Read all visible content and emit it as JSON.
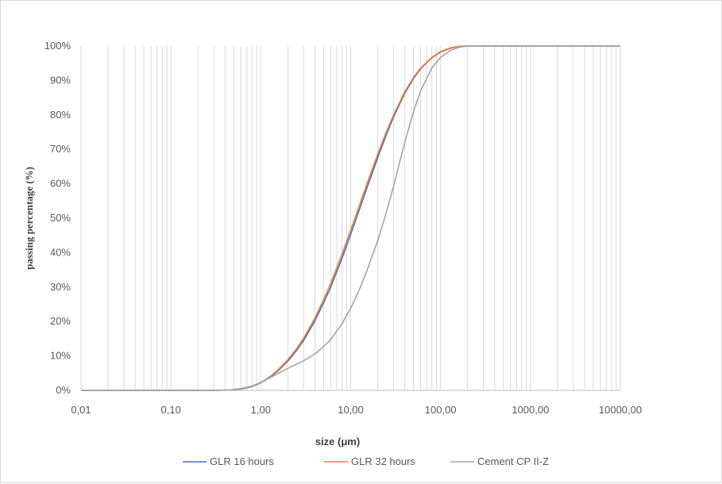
{
  "chart_data": {
    "type": "line",
    "title": "",
    "xlabel": "size (μm)",
    "ylabel": "passing percentage (%)",
    "x_scale": "log",
    "xlim": [
      0.01,
      10000
    ],
    "ylim": [
      0,
      100
    ],
    "x_ticks": [
      {
        "value": 0.01,
        "label": "0,01"
      },
      {
        "value": 0.1,
        "label": "0,10"
      },
      {
        "value": 1,
        "label": "1,00"
      },
      {
        "value": 10,
        "label": "10,00"
      },
      {
        "value": 100,
        "label": "100,00"
      },
      {
        "value": 1000,
        "label": "1000,00"
      },
      {
        "value": 10000,
        "label": "10000,00"
      }
    ],
    "y_ticks": [
      {
        "value": 0,
        "label": "0%"
      },
      {
        "value": 10,
        "label": "10%"
      },
      {
        "value": 20,
        "label": "20%"
      },
      {
        "value": 30,
        "label": "30%"
      },
      {
        "value": 40,
        "label": "40%"
      },
      {
        "value": 50,
        "label": "50%"
      },
      {
        "value": 60,
        "label": "60%"
      },
      {
        "value": 70,
        "label": "70%"
      },
      {
        "value": 80,
        "label": "80%"
      },
      {
        "value": 90,
        "label": "90%"
      },
      {
        "value": 100,
        "label": "100%"
      }
    ],
    "grid": {
      "vertical_minor": true,
      "horizontal": false
    },
    "legend_position": "bottom",
    "series": [
      {
        "name": "GLR 16 hours",
        "color": "#4472c4",
        "points": [
          [
            0.01,
            0
          ],
          [
            0.3,
            0
          ],
          [
            0.45,
            0.1
          ],
          [
            0.6,
            0.4
          ],
          [
            0.8,
            1.1
          ],
          [
            1.0,
            2.2
          ],
          [
            1.3,
            4.0
          ],
          [
            1.6,
            6.0
          ],
          [
            2.0,
            8.5
          ],
          [
            2.5,
            11.6
          ],
          [
            3.0,
            14.5
          ],
          [
            4.0,
            20.2
          ],
          [
            5.0,
            25.4
          ],
          [
            6.0,
            30.0
          ],
          [
            8.0,
            38.3
          ],
          [
            10.0,
            45.3
          ],
          [
            12.5,
            52.5
          ],
          [
            15.0,
            58.4
          ],
          [
            20.0,
            67.6
          ],
          [
            25.0,
            74.3
          ],
          [
            30.0,
            79.4
          ],
          [
            40.0,
            86.3
          ],
          [
            50.0,
            90.6
          ],
          [
            60.0,
            93.4
          ],
          [
            80.0,
            96.6
          ],
          [
            100.0,
            98.3
          ],
          [
            130.0,
            99.4
          ],
          [
            160.0,
            99.9
          ],
          [
            200.0,
            100
          ],
          [
            10000,
            100
          ]
        ]
      },
      {
        "name": "GLR 32 hours",
        "color": "#ed7d31",
        "points": [
          [
            0.01,
            0
          ],
          [
            0.3,
            0
          ],
          [
            0.45,
            0.1
          ],
          [
            0.6,
            0.5
          ],
          [
            0.8,
            1.2
          ],
          [
            1.0,
            2.3
          ],
          [
            1.3,
            4.2
          ],
          [
            1.6,
            6.3
          ],
          [
            2.0,
            8.9
          ],
          [
            2.5,
            12.1
          ],
          [
            3.0,
            15.1
          ],
          [
            4.0,
            21.0
          ],
          [
            5.0,
            26.4
          ],
          [
            6.0,
            31.1
          ],
          [
            8.0,
            39.5
          ],
          [
            10.0,
            46.5
          ],
          [
            12.5,
            53.7
          ],
          [
            15.0,
            59.6
          ],
          [
            20.0,
            68.6
          ],
          [
            25.0,
            75.1
          ],
          [
            30.0,
            80.0
          ],
          [
            40.0,
            86.7
          ],
          [
            50.0,
            90.9
          ],
          [
            60.0,
            93.6
          ],
          [
            80.0,
            96.7
          ],
          [
            100.0,
            98.4
          ],
          [
            130.0,
            99.5
          ],
          [
            160.0,
            99.9
          ],
          [
            200.0,
            100
          ],
          [
            10000,
            100
          ]
        ]
      },
      {
        "name": "Cement CP II-Z",
        "color": "#a5a5a5",
        "points": [
          [
            0.01,
            0
          ],
          [
            0.3,
            0
          ],
          [
            0.45,
            0.1
          ],
          [
            0.6,
            0.5
          ],
          [
            0.8,
            1.3
          ],
          [
            1.0,
            2.3
          ],
          [
            1.3,
            3.8
          ],
          [
            1.6,
            5.1
          ],
          [
            2.0,
            6.4
          ],
          [
            2.5,
            7.6
          ],
          [
            3.0,
            8.6
          ],
          [
            4.0,
            10.6
          ],
          [
            5.0,
            12.7
          ],
          [
            6.0,
            14.8
          ],
          [
            8.0,
            19.3
          ],
          [
            10.0,
            23.8
          ],
          [
            12.5,
            29.3
          ],
          [
            15.0,
            34.4
          ],
          [
            20.0,
            43.5
          ],
          [
            25.0,
            51.8
          ],
          [
            30.0,
            59.3
          ],
          [
            40.0,
            72.0
          ],
          [
            50.0,
            81.0
          ],
          [
            60.0,
            87.0
          ],
          [
            80.0,
            93.6
          ],
          [
            100.0,
            96.7
          ],
          [
            130.0,
            98.8
          ],
          [
            160.0,
            99.6
          ],
          [
            200.0,
            100
          ],
          [
            10000,
            100
          ]
        ]
      }
    ]
  }
}
